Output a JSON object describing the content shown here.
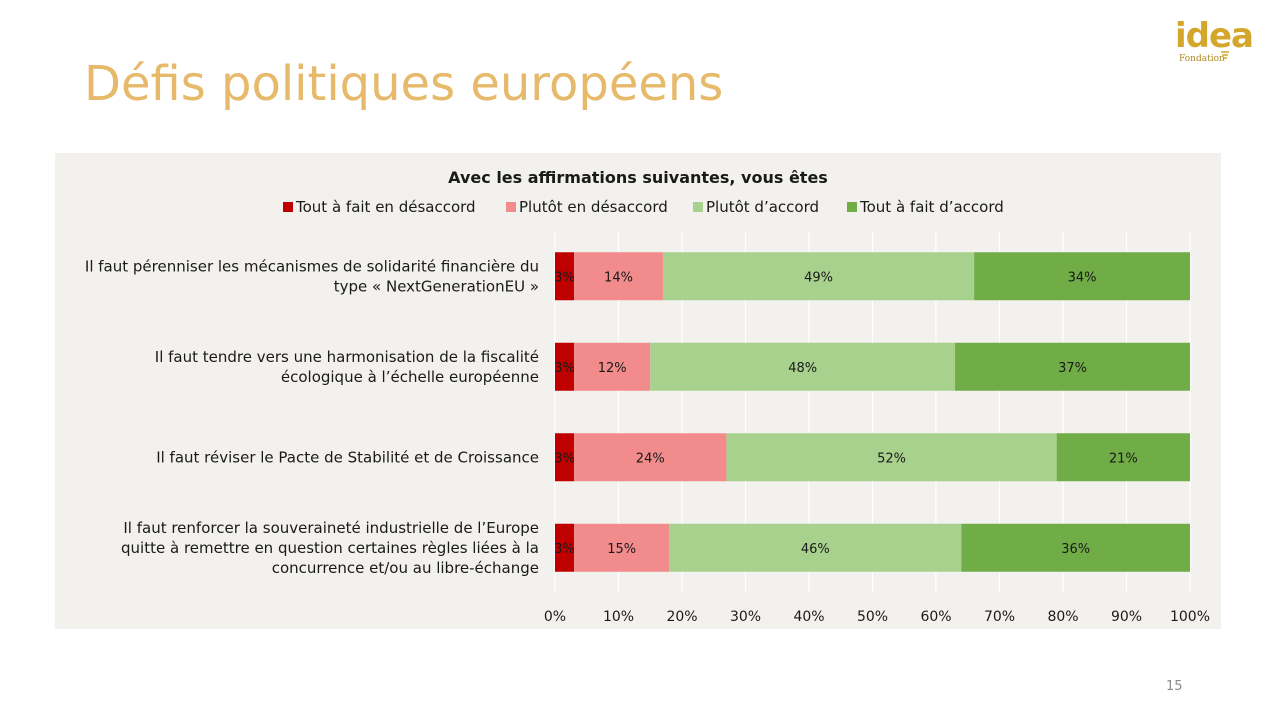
{
  "slide": {
    "title": "Défis politiques européens",
    "page_number": "15"
  },
  "logo": {
    "word": "idea",
    "subtitle": "Fondation"
  },
  "colors": {
    "title": "#e6b96b",
    "panel_background": "#f3f1ed",
    "series": [
      "#c00000",
      "#f28c8c",
      "#a9d18e",
      "#70ad47"
    ]
  },
  "chart_data": {
    "type": "bar",
    "orientation": "horizontal",
    "stacked": true,
    "title": "Avec les affirmations suivantes, vous êtes",
    "legend_position": "top",
    "grid": true,
    "xlim": [
      0,
      100
    ],
    "xticks": [
      "0%",
      "10%",
      "20%",
      "30%",
      "40%",
      "50%",
      "60%",
      "70%",
      "80%",
      "90%",
      "100%"
    ],
    "categories": [
      [
        "Il faut pérenniser les mécanismes de solidarité financière du",
        "type « NextGenerationEU »"
      ],
      [
        "Il faut tendre vers une harmonisation de la fiscalité",
        "écologique à l’échelle européenne"
      ],
      [
        "Il faut réviser le Pacte de Stabilité et de Croissance"
      ],
      [
        "Il faut renforcer la souveraineté industrielle de l’Europe",
        "quitte à remettre en question certaines règles liées à la",
        "concurrence et/ou au libre-échange"
      ]
    ],
    "series": [
      {
        "name": "Tout à fait en désaccord",
        "color": "#c00000",
        "values": [
          3,
          3,
          3,
          3
        ],
        "labels": [
          "3%",
          "3%",
          "3%",
          "3%"
        ]
      },
      {
        "name": "Plutôt en désaccord",
        "color": "#f28c8c",
        "values": [
          14,
          12,
          24,
          15
        ],
        "labels": [
          "14%",
          "12%",
          "24%",
          "15%"
        ]
      },
      {
        "name": "Plutôt d’accord",
        "color": "#a9d18e",
        "values": [
          49,
          48,
          52,
          46
        ],
        "labels": [
          "49%",
          "48%",
          "52%",
          "46%"
        ]
      },
      {
        "name": "Tout à fait d’accord",
        "color": "#70ad47",
        "values": [
          34,
          37,
          21,
          36
        ],
        "labels": [
          "34%",
          "37%",
          "21%",
          "36%"
        ]
      }
    ]
  }
}
